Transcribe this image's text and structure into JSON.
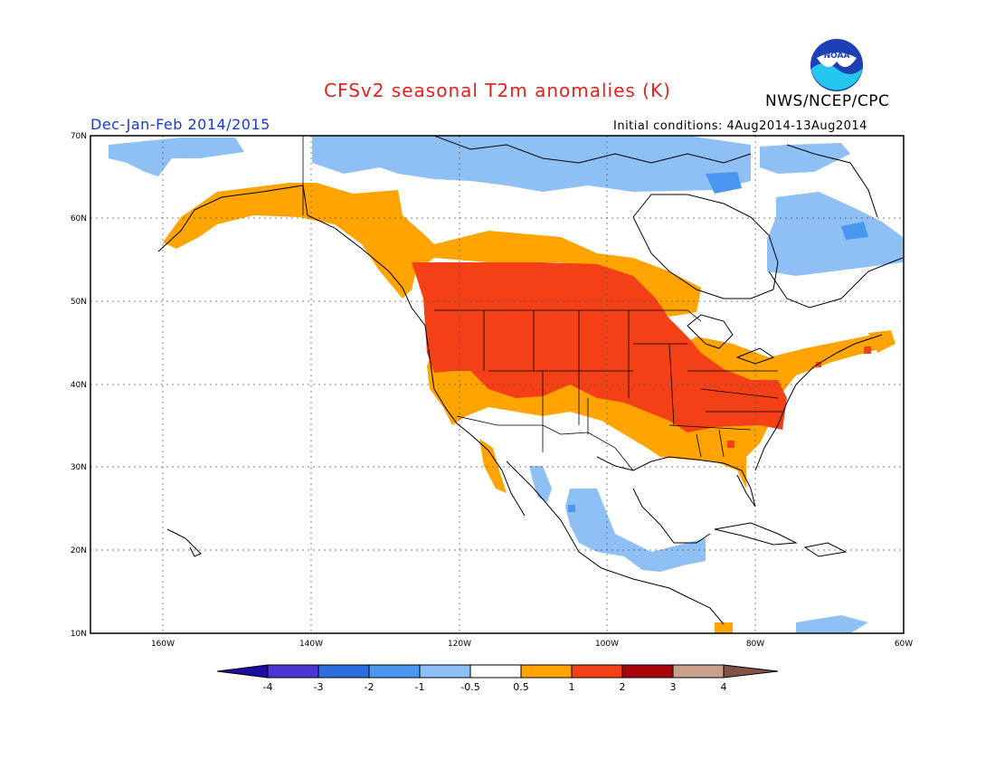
{
  "title": "CFSv2 seasonal T2m anomalies (K)",
  "agency": "NWS/NCEP/CPC",
  "season": "Dec-Jan-Feb 2014/2015",
  "initial_conditions": "Initial conditions: 4Aug2014-13Aug2014",
  "logo_text": "NOAA",
  "lat_labels": [
    "70N",
    "60N",
    "50N",
    "40N",
    "30N",
    "20N",
    "10N"
  ],
  "lon_labels": [
    "160W",
    "140W",
    "120W",
    "100W",
    "80W",
    "60W"
  ],
  "colorbar": {
    "tick_labels": [
      "-4",
      "-3",
      "-2",
      "-1",
      "-0.5",
      "0.5",
      "1",
      "2",
      "3",
      "4"
    ],
    "colors": [
      "#1a0ea0",
      "#4a36d0",
      "#2e6de0",
      "#4a97f2",
      "#8ec0f6",
      "#ffffff",
      "#ffa400",
      "#f34016",
      "#a6050c",
      "#c9a08a",
      "#805244"
    ]
  },
  "colors": {
    "light_blue": "#8ec0f6",
    "blue": "#4a97f2",
    "orange": "#ffa400",
    "red_orange": "#f34016"
  }
}
